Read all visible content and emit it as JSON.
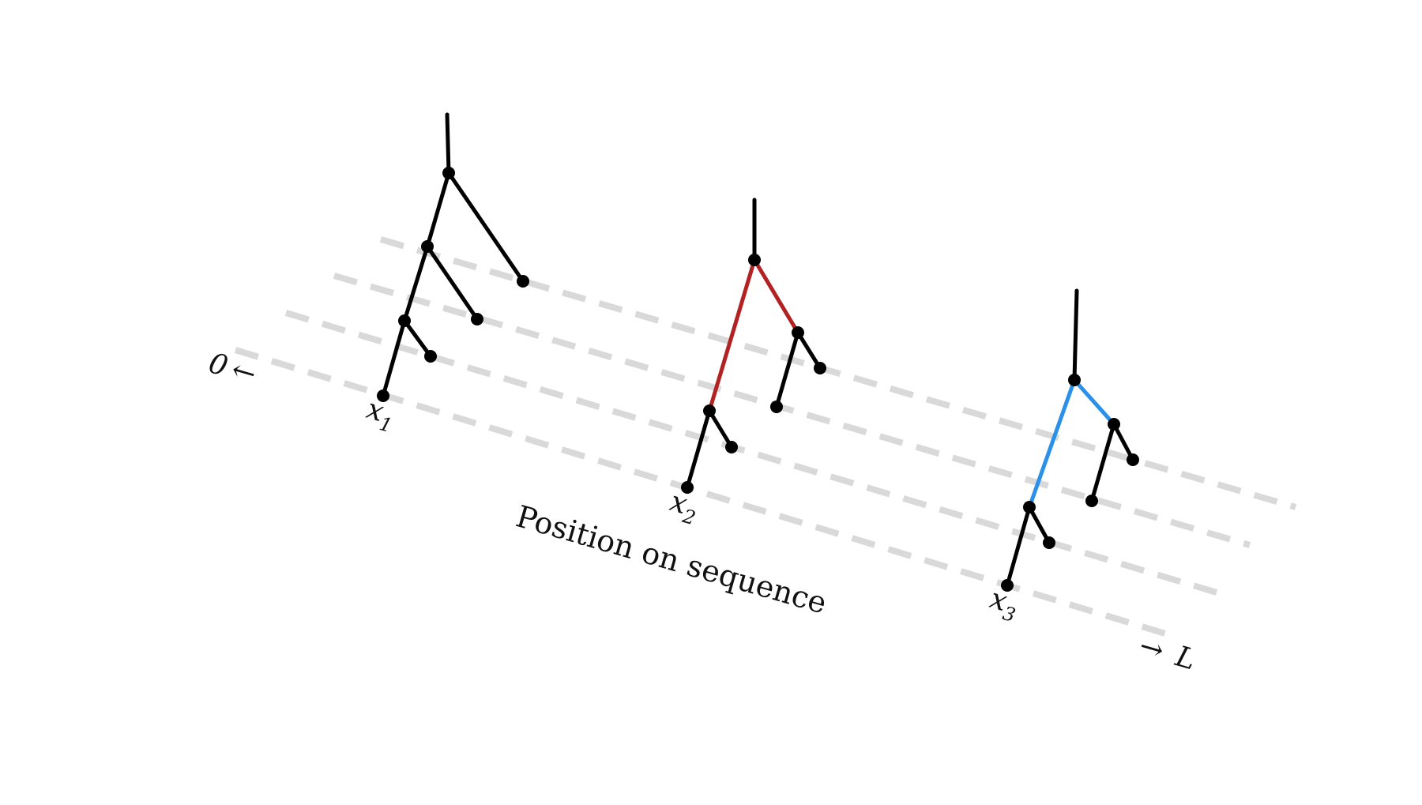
{
  "axis": {
    "title": "Position on sequence",
    "start": "0",
    "end": "L"
  },
  "trees": [
    {
      "label": "x",
      "subscript": "1",
      "highlight_color": ""
    },
    {
      "label": "x",
      "subscript": "2",
      "highlight_color": "#b22222"
    },
    {
      "label": "x",
      "subscript": "3",
      "highlight_color": "#2b90e8"
    }
  ],
  "colors": {
    "branch": "#000000",
    "guide": "#d9d9d9"
  }
}
